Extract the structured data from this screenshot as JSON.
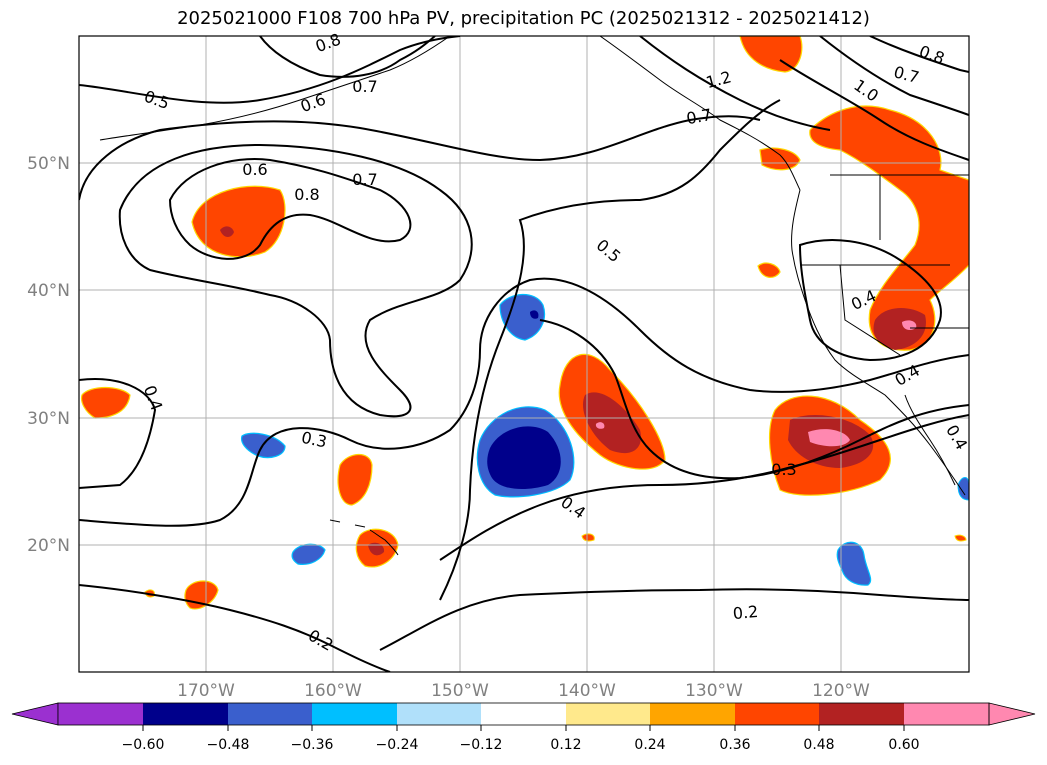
{
  "title": "2025021000 F108 700 hPa PV, precipitation PC (2025021312 - 2025021412)",
  "map": {
    "lon_labels": [
      "170°W",
      "160°W",
      "150°W",
      "140°W",
      "130°W",
      "120°W"
    ],
    "lat_labels": [
      "50°N",
      "40°N",
      "30°N",
      "20°N"
    ],
    "gridline_color": "#b0b0b0",
    "contour_labels": [
      "0.5",
      "0.6",
      "0.8",
      "0.7",
      "0.6",
      "0.7",
      "0.8",
      "0.7",
      "1.2",
      "1.0",
      "0.8",
      "0.7",
      "0.5",
      "0.4",
      "0.4",
      "0.3",
      "0.3",
      "0.4",
      "0.2",
      "0.2",
      "0.4",
      "0.4"
    ]
  },
  "colorbar": {
    "tick_labels": [
      "−0.60",
      "−0.48",
      "−0.36",
      "−0.24",
      "−0.12",
      "0.12",
      "0.24",
      "0.36",
      "0.48",
      "0.60"
    ],
    "colors": [
      "#9b30d0",
      "#00008b",
      "#3a5fcd",
      "#00bfff",
      "#b0e0fa",
      "#ffffff",
      "#ffe98c",
      "#ffa500",
      "#ff4500",
      "#b22222",
      "#ff88b0",
      "#ff88b0"
    ]
  }
}
